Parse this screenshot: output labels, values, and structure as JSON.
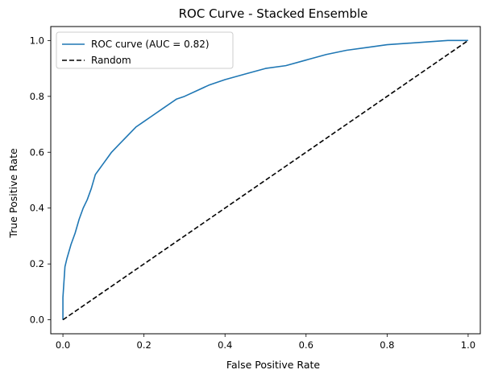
{
  "chart_data": {
    "type": "line",
    "title": "ROC Curve - Stacked Ensemble",
    "xlabel": "False Positive Rate",
    "ylabel": "True Positive Rate",
    "xlim": [
      -0.03,
      1.03
    ],
    "ylim": [
      -0.05,
      1.05
    ],
    "xticks": [
      0.0,
      0.2,
      0.4,
      0.6,
      0.8,
      1.0
    ],
    "xtick_labels": [
      "0.0",
      "0.2",
      "0.4",
      "0.6",
      "0.8",
      "1.0"
    ],
    "yticks": [
      0.0,
      0.2,
      0.4,
      0.6,
      0.8,
      1.0
    ],
    "ytick_labels": [
      "0.0",
      "0.2",
      "0.4",
      "0.6",
      "0.8",
      "1.0"
    ],
    "grid": false,
    "legend_position": "upper-left",
    "series": [
      {
        "name": "ROC curve (AUC = 0.82)",
        "color": "#1f77b4",
        "line_style": "solid",
        "x": [
          0.0,
          0.0,
          0.005,
          0.01,
          0.02,
          0.03,
          0.04,
          0.05,
          0.06,
          0.07,
          0.08,
          0.09,
          0.1,
          0.11,
          0.12,
          0.14,
          0.16,
          0.18,
          0.2,
          0.22,
          0.25,
          0.28,
          0.3,
          0.33,
          0.36,
          0.4,
          0.45,
          0.5,
          0.55,
          0.6,
          0.65,
          0.7,
          0.75,
          0.8,
          0.85,
          0.9,
          0.95,
          1.0
        ],
        "y": [
          0.0,
          0.08,
          0.19,
          0.22,
          0.27,
          0.31,
          0.36,
          0.4,
          0.43,
          0.47,
          0.52,
          0.54,
          0.56,
          0.58,
          0.6,
          0.63,
          0.66,
          0.69,
          0.71,
          0.73,
          0.76,
          0.79,
          0.8,
          0.82,
          0.84,
          0.86,
          0.88,
          0.9,
          0.91,
          0.93,
          0.95,
          0.965,
          0.975,
          0.985,
          0.99,
          0.995,
          1.0,
          1.0
        ]
      },
      {
        "name": "Random",
        "color": "#000000",
        "line_style": "dashed",
        "x": [
          0.0,
          1.0
        ],
        "y": [
          0.0,
          1.0
        ]
      }
    ]
  }
}
